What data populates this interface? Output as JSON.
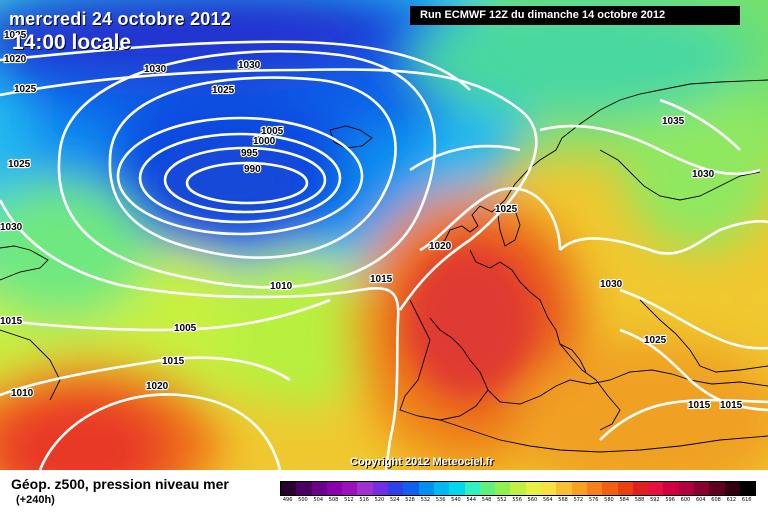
{
  "header": {
    "date": "mercredi 24 octobre 2012",
    "time": "14:00 locale",
    "run": "Run ECMWF 12Z du dimanche 14 octobre 2012"
  },
  "copyright": "Copyright 2012 Meteociel.fr",
  "footer": {
    "title": "Géop. z500, pression niveau mer",
    "subtitle": "(+240h)"
  },
  "legend": {
    "labels": [
      "496",
      "500",
      "504",
      "508",
      "512",
      "516",
      "520",
      "524",
      "528",
      "532",
      "536",
      "540",
      "544",
      "548",
      "552",
      "556",
      "560",
      "564",
      "568",
      "572",
      "576",
      "580",
      "584",
      "588",
      "592",
      "596",
      "600",
      "604",
      "608",
      "612",
      "616"
    ],
    "colors": [
      "#2a0030",
      "#4a0060",
      "#6a0088",
      "#8a00aa",
      "#9a10bb",
      "#a030d0",
      "#7030e0",
      "#3040e8",
      "#1060f0",
      "#0090f0",
      "#00b8f0",
      "#00d8f0",
      "#30f0c0",
      "#60f080",
      "#90f050",
      "#c0f040",
      "#e8f040",
      "#f8e040",
      "#f8c030",
      "#f8a020",
      "#f88018",
      "#f06010",
      "#e84010",
      "#e02020",
      "#e81040",
      "#d00040",
      "#b00040",
      "#880030",
      "#600020",
      "#300010",
      "#000000"
    ]
  },
  "isobars": [
    {
      "label": "1025"
    },
    {
      "label": "1020"
    },
    {
      "label": "1030"
    },
    {
      "label": "1030"
    },
    {
      "label": "1025"
    },
    {
      "label": "1025"
    },
    {
      "label": "1005"
    },
    {
      "label": "1000"
    },
    {
      "label": "995"
    },
    {
      "label": "990"
    },
    {
      "label": "1025"
    },
    {
      "label": "1030"
    },
    {
      "label": "1015"
    },
    {
      "label": "1010"
    },
    {
      "label": "1005"
    },
    {
      "label": "1015"
    },
    {
      "label": "1010"
    },
    {
      "label": "1020"
    },
    {
      "label": "1015"
    },
    {
      "label": "1025"
    },
    {
      "label": "1020"
    },
    {
      "label": "1035"
    },
    {
      "label": "1030"
    },
    {
      "label": "1030"
    },
    {
      "label": "1025"
    },
    {
      "label": "1015"
    },
    {
      "label": "1015"
    }
  ]
}
